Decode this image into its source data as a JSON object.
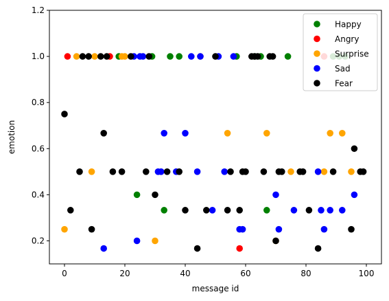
{
  "chart_data": {
    "type": "scatter",
    "xlabel": "message id",
    "ylabel": "emotion",
    "xlim": [
      -5,
      105
    ],
    "ylim": [
      0.1,
      1.2
    ],
    "xticks": [
      0,
      20,
      40,
      60,
      80,
      100
    ],
    "yticks": [
      0.2,
      0.4,
      0.6,
      0.8,
      1.0,
      1.2
    ],
    "xtick_labels": [
      "0",
      "20",
      "40",
      "60",
      "80",
      "100"
    ],
    "ytick_labels": [
      "0.2",
      "0.4",
      "0.6",
      "0.8",
      "1.0",
      "1.2"
    ],
    "legend_position": "top-right",
    "grid": false,
    "series": [
      {
        "name": "Happy",
        "color": "#008000",
        "points": [
          [
            18,
            1.0
          ],
          [
            29,
            1.0
          ],
          [
            35,
            1.0
          ],
          [
            38,
            1.0
          ],
          [
            57,
            1.0
          ],
          [
            63,
            1.0
          ],
          [
            65,
            1.0
          ],
          [
            74,
            1.0
          ],
          [
            89,
            1.0
          ],
          [
            91,
            1.0
          ],
          [
            93,
            1.0
          ],
          [
            24,
            0.4
          ],
          [
            33,
            0.333
          ],
          [
            67,
            0.333
          ]
        ]
      },
      {
        "name": "Angry",
        "color": "#ff0000",
        "points": [
          [
            1,
            1.0
          ],
          [
            15,
            1.0
          ],
          [
            86,
            1.0
          ],
          [
            58,
            0.167
          ]
        ]
      },
      {
        "name": "Surprise",
        "color": "#ffa500",
        "points": [
          [
            4,
            1.0
          ],
          [
            10,
            1.0
          ],
          [
            19,
            1.0
          ],
          [
            20,
            1.0
          ],
          [
            45,
            1.0
          ],
          [
            54,
            0.667
          ],
          [
            67,
            0.667
          ],
          [
            88,
            0.667
          ],
          [
            92,
            0.667
          ],
          [
            9,
            0.5
          ],
          [
            75,
            0.5
          ],
          [
            86,
            0.5
          ],
          [
            95,
            0.5
          ],
          [
            0,
            0.25
          ],
          [
            30,
            0.2
          ],
          [
            70,
            0.2
          ]
        ]
      },
      {
        "name": "Sad",
        "color": "#0000ff",
        "points": [
          [
            23,
            1.0
          ],
          [
            25,
            1.0
          ],
          [
            26,
            1.0
          ],
          [
            42,
            1.0
          ],
          [
            45,
            1.0
          ],
          [
            51,
            1.0
          ],
          [
            56,
            1.0
          ],
          [
            33,
            0.667
          ],
          [
            40,
            0.667
          ],
          [
            31,
            0.5
          ],
          [
            32,
            0.5
          ],
          [
            37,
            0.5
          ],
          [
            44,
            0.5
          ],
          [
            53,
            0.5
          ],
          [
            84,
            0.5
          ],
          [
            70,
            0.4
          ],
          [
            96,
            0.4
          ],
          [
            49,
            0.333
          ],
          [
            76,
            0.333
          ],
          [
            85,
            0.333
          ],
          [
            88,
            0.333
          ],
          [
            92,
            0.333
          ],
          [
            58,
            0.25
          ],
          [
            59,
            0.25
          ],
          [
            71,
            0.25
          ],
          [
            86,
            0.25
          ],
          [
            13,
            0.167
          ],
          [
            24,
            0.2
          ]
        ]
      },
      {
        "name": "Fear",
        "color": "#000000",
        "points": [
          [
            6,
            1.0
          ],
          [
            8,
            1.0
          ],
          [
            12,
            1.0
          ],
          [
            14,
            1.0
          ],
          [
            22,
            1.0
          ],
          [
            28,
            1.0
          ],
          [
            50,
            1.0
          ],
          [
            62,
            1.0
          ],
          [
            63,
            1.0
          ],
          [
            64,
            1.0
          ],
          [
            68,
            1.0
          ],
          [
            69,
            1.0
          ],
          [
            0,
            0.75
          ],
          [
            13,
            0.667
          ],
          [
            96,
            0.6
          ],
          [
            5,
            0.5
          ],
          [
            16,
            0.5
          ],
          [
            19,
            0.5
          ],
          [
            27,
            0.5
          ],
          [
            34,
            0.5
          ],
          [
            38,
            0.5
          ],
          [
            55,
            0.5
          ],
          [
            59,
            0.5
          ],
          [
            60,
            0.5
          ],
          [
            66,
            0.5
          ],
          [
            71,
            0.5
          ],
          [
            72,
            0.5
          ],
          [
            78,
            0.5
          ],
          [
            79,
            0.5
          ],
          [
            89,
            0.5
          ],
          [
            98,
            0.5
          ],
          [
            99,
            0.5
          ],
          [
            30,
            0.4
          ],
          [
            2,
            0.333
          ],
          [
            40,
            0.333
          ],
          [
            47,
            0.333
          ],
          [
            54,
            0.333
          ],
          [
            58,
            0.333
          ],
          [
            81,
            0.333
          ],
          [
            9,
            0.25
          ],
          [
            95,
            0.25
          ],
          [
            44,
            0.167
          ],
          [
            84,
            0.167
          ],
          [
            70,
            0.2
          ]
        ]
      }
    ]
  }
}
